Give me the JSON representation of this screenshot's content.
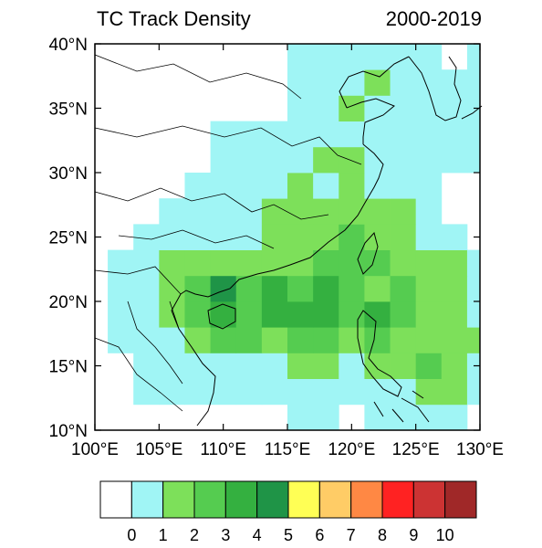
{
  "title": "TC Track Density",
  "period": "2000-2019",
  "lat_labels": [
    "10°N",
    "15°N",
    "20°N",
    "25°N",
    "30°N",
    "35°N",
    "40°N"
  ],
  "lon_labels": [
    "100°E",
    "105°E",
    "110°E",
    "115°E",
    "120°E",
    "125°E",
    "130°E"
  ],
  "colorbar": {
    "labels": [
      "0",
      "1",
      "2",
      "3",
      "4",
      "5",
      "6",
      "7",
      "8",
      "9",
      "10"
    ],
    "colors": [
      "#ffffff",
      "#a0f5f5",
      "#7de05a",
      "#55cc50",
      "#34b040",
      "#1f9447",
      "#ffff55",
      "#ffcc66",
      "#ff8844",
      "#ff2222",
      "#cc3333",
      "#a02828"
    ]
  },
  "chart_data": {
    "type": "heatmap",
    "title": "TC Track Density",
    "subtitle": "2000-2019",
    "lon_range": [
      100,
      130
    ],
    "lat_range": [
      10,
      40
    ],
    "cell_size_deg": 2,
    "levels": [
      0,
      1,
      2,
      3,
      4,
      5,
      6,
      7,
      8,
      9,
      10
    ],
    "grid_cells": {
      "description_of_keys": "lon0 = west edge (°E), lat0 = south edge (°N), class = color band index",
      "cells": [
        [
          115,
          10,
          1
        ],
        [
          117,
          10,
          1
        ],
        [
          121,
          10,
          1
        ],
        [
          123,
          10,
          1
        ],
        [
          125,
          10,
          1
        ],
        [
          127,
          10,
          1
        ],
        [
          103,
          12,
          1
        ],
        [
          105,
          12,
          1
        ],
        [
          107,
          12,
          1
        ],
        [
          109,
          12,
          1
        ],
        [
          111,
          12,
          1
        ],
        [
          113,
          12,
          1
        ],
        [
          115,
          12,
          1
        ],
        [
          117,
          12,
          1
        ],
        [
          119,
          12,
          1
        ],
        [
          121,
          12,
          1
        ],
        [
          123,
          12,
          1
        ],
        [
          125,
          12,
          2
        ],
        [
          127,
          12,
          2
        ],
        [
          129,
          12,
          1
        ],
        [
          103,
          14,
          1
        ],
        [
          105,
          14,
          1
        ],
        [
          107,
          14,
          1
        ],
        [
          109,
          14,
          1
        ],
        [
          111,
          14,
          1
        ],
        [
          113,
          14,
          1
        ],
        [
          115,
          14,
          2
        ],
        [
          117,
          14,
          2
        ],
        [
          119,
          14,
          1
        ],
        [
          121,
          14,
          2
        ],
        [
          123,
          14,
          2
        ],
        [
          125,
          14,
          3
        ],
        [
          127,
          14,
          2
        ],
        [
          129,
          14,
          1
        ],
        [
          101,
          16,
          1
        ],
        [
          103,
          16,
          1
        ],
        [
          105,
          16,
          1
        ],
        [
          107,
          16,
          2
        ],
        [
          109,
          16,
          3
        ],
        [
          111,
          16,
          3
        ],
        [
          113,
          16,
          2
        ],
        [
          115,
          16,
          3
        ],
        [
          117,
          16,
          3
        ],
        [
          119,
          16,
          2
        ],
        [
          121,
          16,
          3
        ],
        [
          123,
          16,
          2
        ],
        [
          125,
          16,
          2
        ],
        [
          127,
          16,
          2
        ],
        [
          129,
          16,
          2
        ],
        [
          101,
          18,
          1
        ],
        [
          103,
          18,
          1
        ],
        [
          105,
          18,
          2
        ],
        [
          107,
          18,
          3
        ],
        [
          109,
          18,
          4
        ],
        [
          111,
          18,
          3
        ],
        [
          113,
          18,
          4
        ],
        [
          115,
          18,
          4
        ],
        [
          117,
          18,
          4
        ],
        [
          119,
          18,
          3
        ],
        [
          121,
          18,
          4
        ],
        [
          123,
          18,
          3
        ],
        [
          125,
          18,
          2
        ],
        [
          127,
          18,
          2
        ],
        [
          129,
          18,
          1
        ],
        [
          101,
          20,
          1
        ],
        [
          103,
          20,
          1
        ],
        [
          105,
          20,
          2
        ],
        [
          107,
          20,
          3
        ],
        [
          109,
          20,
          5
        ],
        [
          111,
          20,
          3
        ],
        [
          113,
          20,
          4
        ],
        [
          115,
          20,
          3
        ],
        [
          117,
          20,
          4
        ],
        [
          119,
          20,
          3
        ],
        [
          121,
          20,
          2
        ],
        [
          123,
          20,
          3
        ],
        [
          125,
          20,
          2
        ],
        [
          127,
          20,
          2
        ],
        [
          129,
          20,
          1
        ],
        [
          101,
          22,
          1
        ],
        [
          103,
          22,
          1
        ],
        [
          105,
          22,
          2
        ],
        [
          107,
          22,
          2
        ],
        [
          109,
          22,
          2
        ],
        [
          111,
          22,
          2
        ],
        [
          113,
          22,
          2
        ],
        [
          115,
          22,
          2
        ],
        [
          117,
          22,
          3
        ],
        [
          119,
          22,
          3
        ],
        [
          121,
          22,
          3
        ],
        [
          123,
          22,
          2
        ],
        [
          125,
          22,
          2
        ],
        [
          127,
          22,
          2
        ],
        [
          129,
          22,
          1
        ],
        [
          103,
          24,
          1
        ],
        [
          105,
          24,
          1
        ],
        [
          107,
          24,
          1
        ],
        [
          109,
          24,
          1
        ],
        [
          111,
          24,
          1
        ],
        [
          113,
          24,
          2
        ],
        [
          115,
          24,
          2
        ],
        [
          117,
          24,
          2
        ],
        [
          119,
          24,
          3
        ],
        [
          121,
          24,
          2
        ],
        [
          123,
          24,
          2
        ],
        [
          125,
          24,
          1
        ],
        [
          127,
          24,
          1
        ],
        [
          105,
          26,
          1
        ],
        [
          107,
          26,
          1
        ],
        [
          109,
          26,
          1
        ],
        [
          111,
          26,
          1
        ],
        [
          113,
          26,
          2
        ],
        [
          115,
          26,
          2
        ],
        [
          117,
          26,
          2
        ],
        [
          119,
          26,
          2
        ],
        [
          121,
          26,
          2
        ],
        [
          123,
          26,
          2
        ],
        [
          125,
          26,
          1
        ],
        [
          107,
          28,
          1
        ],
        [
          109,
          28,
          1
        ],
        [
          111,
          28,
          1
        ],
        [
          113,
          28,
          1
        ],
        [
          115,
          28,
          2
        ],
        [
          117,
          28,
          1
        ],
        [
          119,
          28,
          2
        ],
        [
          121,
          28,
          1
        ],
        [
          123,
          28,
          1
        ],
        [
          125,
          28,
          1
        ],
        [
          109,
          30,
          1
        ],
        [
          111,
          30,
          1
        ],
        [
          113,
          30,
          1
        ],
        [
          115,
          30,
          1
        ],
        [
          117,
          30,
          2
        ],
        [
          119,
          30,
          2
        ],
        [
          121,
          30,
          1
        ],
        [
          123,
          30,
          1
        ],
        [
          125,
          30,
          1
        ],
        [
          127,
          30,
          1
        ],
        [
          129,
          30,
          1
        ],
        [
          109,
          32,
          1
        ],
        [
          111,
          32,
          1
        ],
        [
          113,
          32,
          1
        ],
        [
          115,
          32,
          1
        ],
        [
          117,
          32,
          1
        ],
        [
          119,
          32,
          1
        ],
        [
          121,
          32,
          1
        ],
        [
          123,
          32,
          1
        ],
        [
          125,
          32,
          1
        ],
        [
          127,
          32,
          1
        ],
        [
          129,
          32,
          1
        ],
        [
          115,
          34,
          1
        ],
        [
          117,
          34,
          1
        ],
        [
          119,
          34,
          2
        ],
        [
          121,
          34,
          1
        ],
        [
          123,
          34,
          1
        ],
        [
          125,
          34,
          1
        ],
        [
          127,
          34,
          1
        ],
        [
          129,
          34,
          1
        ],
        [
          115,
          36,
          1
        ],
        [
          117,
          36,
          1
        ],
        [
          119,
          36,
          1
        ],
        [
          121,
          36,
          2
        ],
        [
          123,
          36,
          1
        ],
        [
          125,
          36,
          1
        ],
        [
          127,
          36,
          1
        ],
        [
          129,
          36,
          1
        ],
        [
          115,
          38,
          1
        ],
        [
          117,
          38,
          1
        ],
        [
          119,
          38,
          1
        ],
        [
          121,
          38,
          1
        ],
        [
          123,
          38,
          1
        ],
        [
          125,
          38,
          1
        ],
        [
          129,
          38,
          1
        ]
      ]
    }
  }
}
